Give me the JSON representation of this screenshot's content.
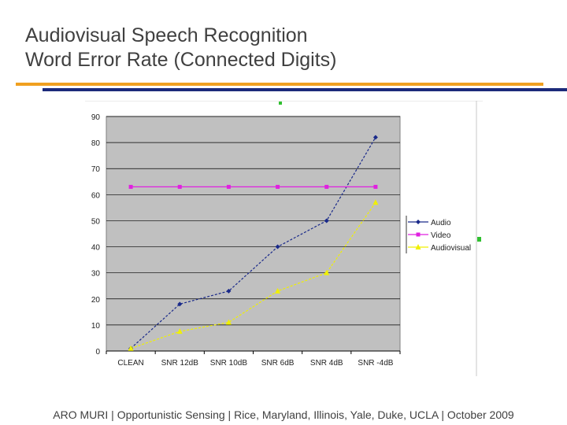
{
  "slide": {
    "title_line1": "Audiovisual Speech Recognition",
    "title_line2": "Word Error Rate (Connected Digits)",
    "footer": "ARO MURI | Opportunistic Sensing | Rice, Maryland, Illinois, Yale, Duke, UCLA | October 2009"
  },
  "colors": {
    "accent_orange": "#f0a020",
    "accent_navy": "#1c2a7a",
    "plot_bg": "#c0c0c0",
    "audio": "#1a2a8a",
    "video": "#e020e0",
    "audiovisual": "#f0f000"
  },
  "chart_data": {
    "type": "line",
    "title": "",
    "xlabel": "",
    "ylabel": "",
    "categories": [
      "CLEAN",
      "SNR 12dB",
      "SNR 10dB",
      "SNR 6dB",
      "SNR 4dB",
      "SNR -4dB"
    ],
    "ylim": [
      0,
      90
    ],
    "yticks": [
      0,
      10,
      20,
      30,
      40,
      50,
      60,
      70,
      80,
      90
    ],
    "grid": "horizontal",
    "legend_position": "right",
    "series": [
      {
        "name": "Audio",
        "values": [
          1,
          18,
          23,
          40,
          50,
          82
        ],
        "color": "#1a2a8a",
        "marker": "diamond",
        "dash": true
      },
      {
        "name": "Video",
        "values": [
          63,
          63,
          63,
          63,
          63,
          63
        ],
        "color": "#e020e0",
        "marker": "square",
        "dash": false
      },
      {
        "name": "Audiovisual",
        "values": [
          1,
          7.5,
          11,
          23,
          30,
          57
        ],
        "color": "#f0f000",
        "marker": "triangle",
        "dash": true
      }
    ]
  }
}
